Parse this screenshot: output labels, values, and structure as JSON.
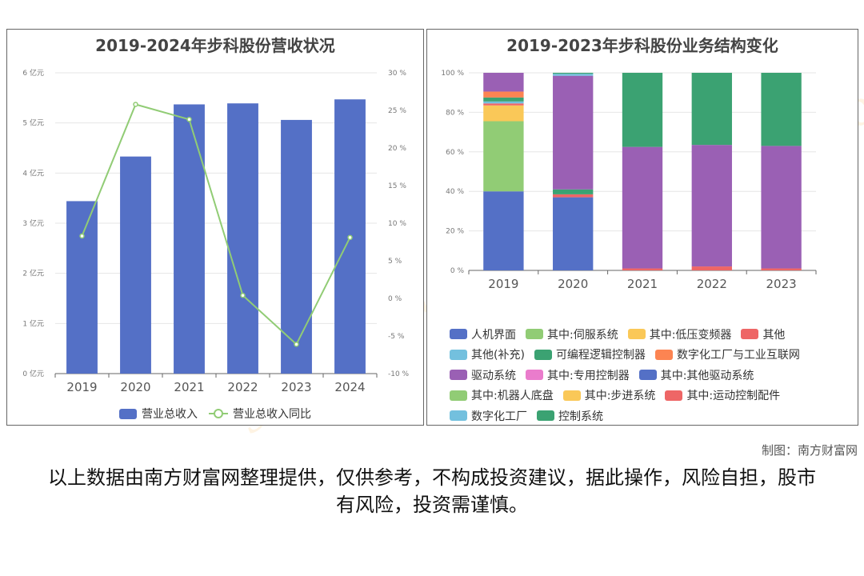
{
  "chart_data": [
    {
      "type": "bar",
      "title": "2019-2024年步科股份营收状况",
      "categories": [
        "2019",
        "2020",
        "2021",
        "2022",
        "2023",
        "2024"
      ],
      "ylim": [
        0,
        6
      ],
      "y_ticks": [
        "0 亿元",
        "1 亿元",
        "2 亿元",
        "3 亿元",
        "4 亿元",
        "5 亿元",
        "6 亿元"
      ],
      "y2lim": [
        -10,
        30
      ],
      "y2_ticks": [
        "-10 %",
        "-5 %",
        "0 %",
        "5 %",
        "10 %",
        "15 %",
        "20 %",
        "25 %",
        "30 %"
      ],
      "series": [
        {
          "name": "营业总收入",
          "kind": "bar",
          "color": "#5470c6",
          "values": [
            3.44,
            4.33,
            5.37,
            5.39,
            5.06,
            5.47
          ]
        },
        {
          "name": "营业总收入同比",
          "kind": "line",
          "axis": "right",
          "color": "#91cc75",
          "values": [
            8.3,
            25.8,
            23.8,
            0.4,
            -6.1,
            8.1
          ]
        }
      ],
      "legend_position": "bottom",
      "grid": true
    },
    {
      "type": "bar",
      "stacked": true,
      "title": "2019-2023年步科股份业务结构变化",
      "categories": [
        "2019",
        "2020",
        "2021",
        "2022",
        "2023"
      ],
      "ylim": [
        0,
        100
      ],
      "y_ticks": [
        "0 %",
        "20 %",
        "40 %",
        "60 %",
        "80 %",
        "100 %"
      ],
      "series": [
        {
          "name": "人机界面",
          "color": "#5470c6",
          "values": [
            40,
            37,
            0,
            0,
            0
          ]
        },
        {
          "name": "其中:伺服系统",
          "color": "#91cc75",
          "values": [
            35.5,
            0,
            0,
            0,
            0
          ]
        },
        {
          "name": "其中:低压变频器",
          "color": "#fac858",
          "values": [
            8,
            0,
            0,
            0,
            0
          ]
        },
        {
          "name": "其他",
          "color": "#ee6666",
          "values": [
            1,
            1.5,
            1,
            2,
            1
          ]
        },
        {
          "name": "其他(补充)",
          "color": "#73c0de",
          "values": [
            1,
            0,
            0,
            0,
            0
          ]
        },
        {
          "name": "可编程逻辑控制器",
          "color": "#3ba272",
          "values": [
            2,
            2.5,
            0,
            0,
            0
          ]
        },
        {
          "name": "数字化工厂与工业互联网",
          "color": "#fc8452",
          "values": [
            3,
            0,
            0,
            0,
            0
          ]
        },
        {
          "name": "驱动系统",
          "color": "#9a60b4",
          "values": [
            9.5,
            57.5,
            61.5,
            61.5,
            62
          ]
        },
        {
          "name": "其中:专用控制器",
          "color": "#ea7ccc",
          "values": [
            0,
            0,
            0,
            0,
            0
          ]
        },
        {
          "name": "其中:其他驱动系统",
          "color": "#5470c6",
          "values": [
            0,
            0,
            0,
            0,
            0
          ]
        },
        {
          "name": "其中:机器人底盘",
          "color": "#91cc75",
          "values": [
            0,
            0,
            0,
            0,
            0
          ]
        },
        {
          "name": "其中:步进系统",
          "color": "#fac858",
          "values": [
            0,
            0,
            0,
            0,
            0
          ]
        },
        {
          "name": "其中:运动控制配件",
          "color": "#ee6666",
          "values": [
            0,
            0,
            0,
            0,
            0
          ]
        },
        {
          "name": "数字化工厂",
          "color": "#73c0de",
          "values": [
            0,
            1,
            0,
            0,
            0
          ]
        },
        {
          "name": "控制系统",
          "color": "#3ba272",
          "values": [
            0,
            0.5,
            37.5,
            36.5,
            37
          ]
        }
      ],
      "legend_position": "bottom",
      "grid": true
    }
  ],
  "credit": "制图：南方财富网",
  "disclaimer": "以上数据由南方财富网整理提供，仅供参考，不构成投资建议，据此操作，风险自担，股市有风险，投资需谨慎。",
  "watermark": [
    "南方财富网",
    "southmoney.com"
  ]
}
